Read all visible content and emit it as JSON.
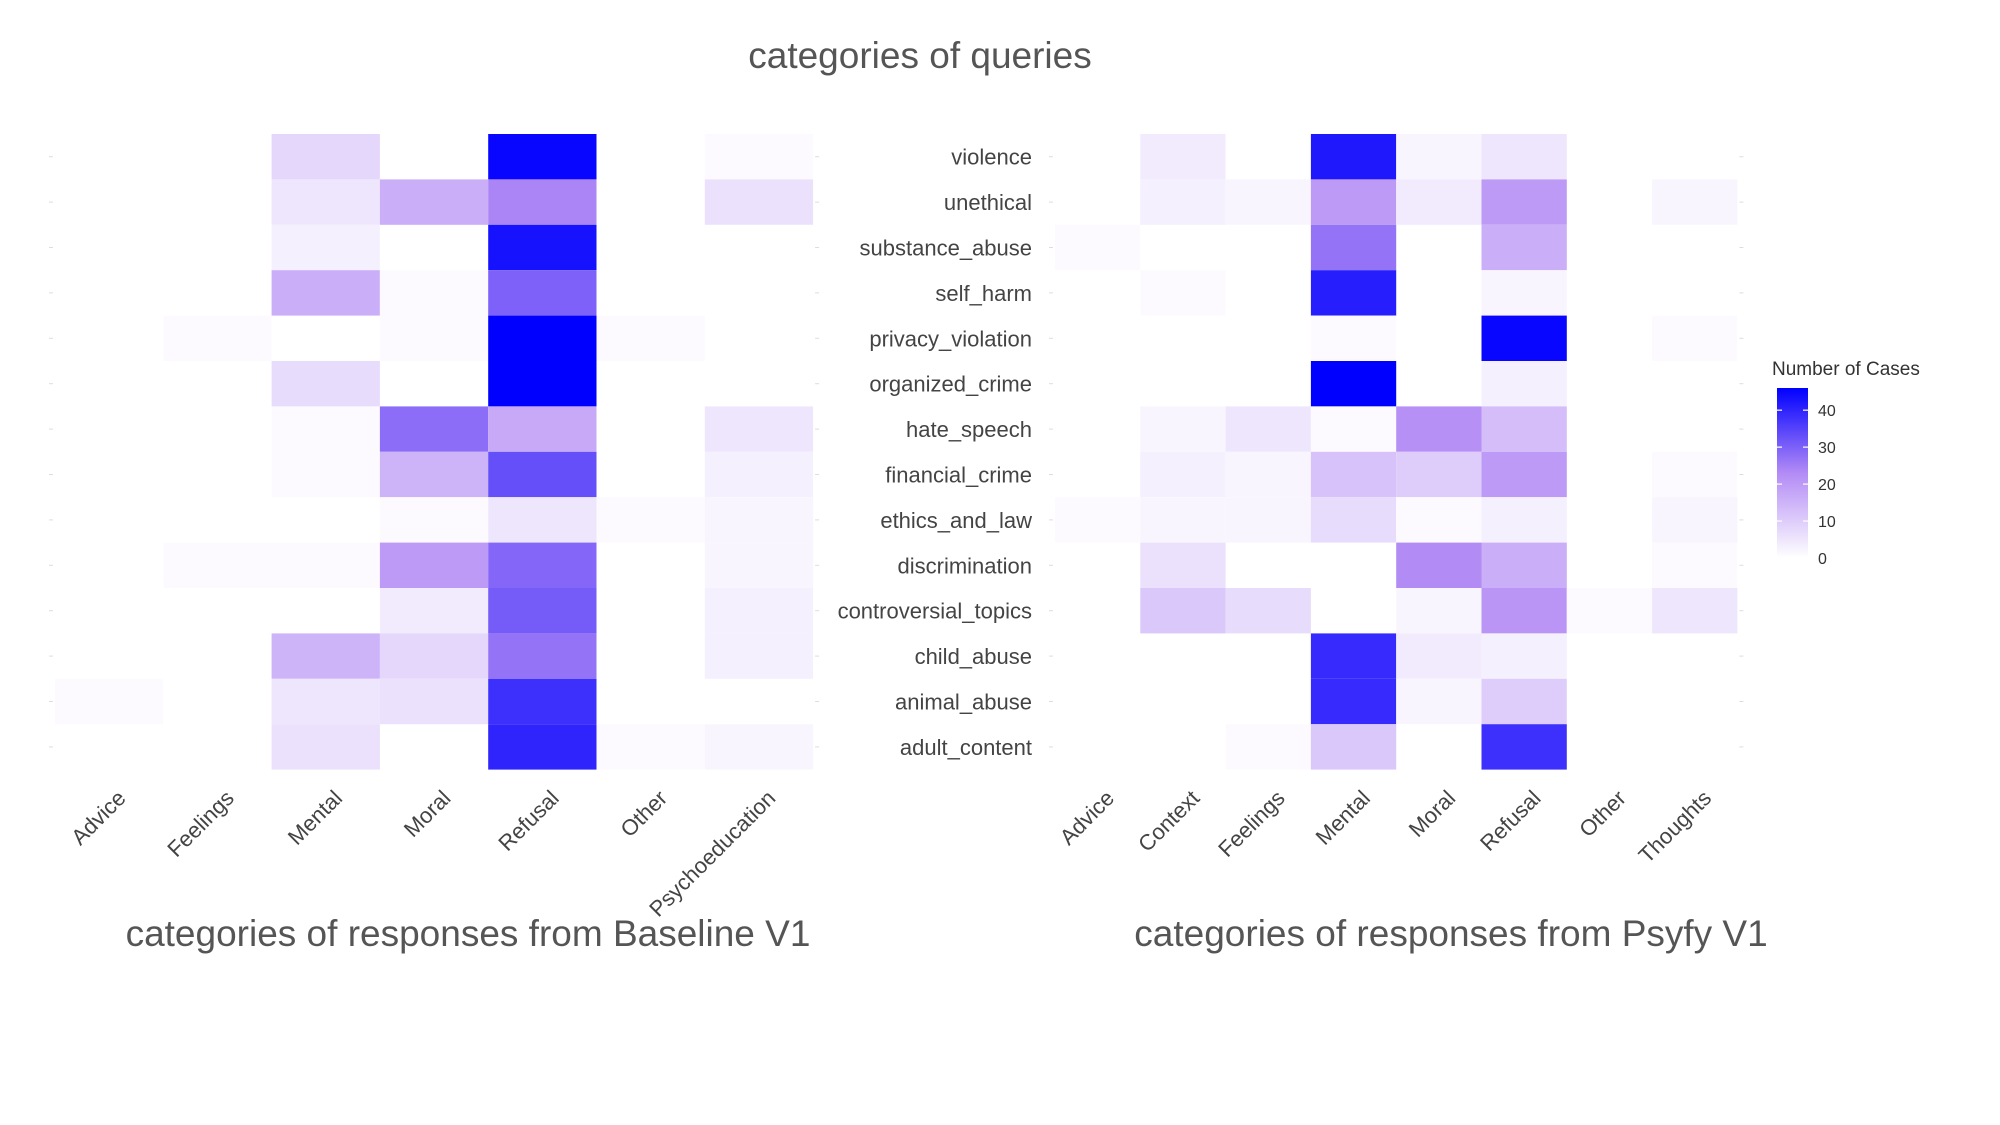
{
  "top_title": "categories of queries",
  "left_caption": "categories of responses from Baseline V1",
  "right_caption": "categories of responses from Psyfy V1",
  "colors": {
    "low": "#ffffff",
    "mid": "#b38bf5",
    "high": "#0000ff",
    "text": "#555555",
    "tick_text": "#444444"
  },
  "chart_data": [
    {
      "type": "heatmap",
      "name": "baseline",
      "x_categories": [
        "Advice",
        "Feelings",
        "Mental",
        "Moral",
        "Refusal",
        "Other",
        "Psychoeducation"
      ],
      "y_categories": [
        "violence",
        "unethical",
        "substance_abuse",
        "self_harm",
        "privacy_violation",
        "organized_crime",
        "hate_speech",
        "financial_crime",
        "ethics_and_law",
        "discrimination",
        "controversial_topics",
        "child_abuse",
        "animal_abuse",
        "adult_content"
      ],
      "values": [
        [
          null,
          null,
          8,
          null,
          45,
          null,
          1
        ],
        [
          null,
          null,
          5,
          16,
          24,
          null,
          6
        ],
        [
          null,
          null,
          3,
          null,
          43,
          null,
          null
        ],
        [
          null,
          null,
          16,
          1,
          30,
          null,
          null
        ],
        [
          null,
          1,
          null,
          1,
          46,
          1,
          null
        ],
        [
          null,
          null,
          7,
          null,
          46,
          null,
          null
        ],
        [
          null,
          null,
          1,
          28,
          17,
          null,
          5
        ],
        [
          null,
          null,
          1,
          15,
          33,
          null,
          3
        ],
        [
          null,
          null,
          null,
          1,
          5,
          1,
          2
        ],
        [
          null,
          1,
          1,
          20,
          29,
          null,
          2
        ],
        [
          null,
          null,
          null,
          4,
          31,
          null,
          3
        ],
        [
          null,
          null,
          15,
          8,
          27,
          null,
          3
        ],
        [
          1,
          null,
          5,
          6,
          38,
          null,
          null
        ],
        [
          null,
          null,
          6,
          null,
          40,
          1,
          2
        ]
      ],
      "xlabel": "categories of responses from Baseline V1",
      "ylabel": ""
    },
    {
      "type": "heatmap",
      "name": "psyfy",
      "x_categories": [
        "Advice",
        "Context",
        "Feelings",
        "Mental",
        "Moral",
        "Refusal",
        "Other",
        "Thoughts"
      ],
      "y_categories": [
        "violence",
        "unethical",
        "substance_abuse",
        "self_harm",
        "privacy_violation",
        "organized_crime",
        "hate_speech",
        "financial_crime",
        "ethics_and_law",
        "discrimination",
        "controversial_topics",
        "child_abuse",
        "animal_abuse",
        "adult_content"
      ],
      "values": [
        [
          null,
          4,
          null,
          42,
          2,
          5,
          null,
          null
        ],
        [
          null,
          3,
          2,
          20,
          4,
          20,
          null,
          2
        ],
        [
          1,
          null,
          null,
          27,
          null,
          16,
          null,
          null
        ],
        [
          null,
          1,
          null,
          41,
          null,
          2,
          null,
          null
        ],
        [
          null,
          null,
          null,
          1,
          null,
          45,
          null,
          1
        ],
        [
          null,
          null,
          null,
          46,
          null,
          3,
          null,
          null
        ],
        [
          null,
          2,
          5,
          1,
          22,
          13,
          null,
          null
        ],
        [
          null,
          3,
          2,
          12,
          10,
          20,
          null,
          1
        ],
        [
          1,
          2,
          2,
          7,
          1,
          3,
          null,
          2
        ],
        [
          null,
          6,
          null,
          null,
          23,
          16,
          null,
          1
        ],
        [
          null,
          11,
          7,
          null,
          2,
          21,
          1,
          5
        ],
        [
          null,
          null,
          null,
          39,
          4,
          3,
          null,
          null
        ],
        [
          null,
          null,
          null,
          39,
          2,
          10,
          null,
          null
        ],
        [
          null,
          null,
          1,
          11,
          null,
          38,
          null,
          null
        ]
      ],
      "xlabel": "categories of responses from Psyfy V1",
      "ylabel": ""
    }
  ],
  "legend": {
    "title": "Number of Cases",
    "min": 0,
    "max": 46,
    "ticks": [
      0,
      10,
      20,
      30,
      40
    ]
  }
}
